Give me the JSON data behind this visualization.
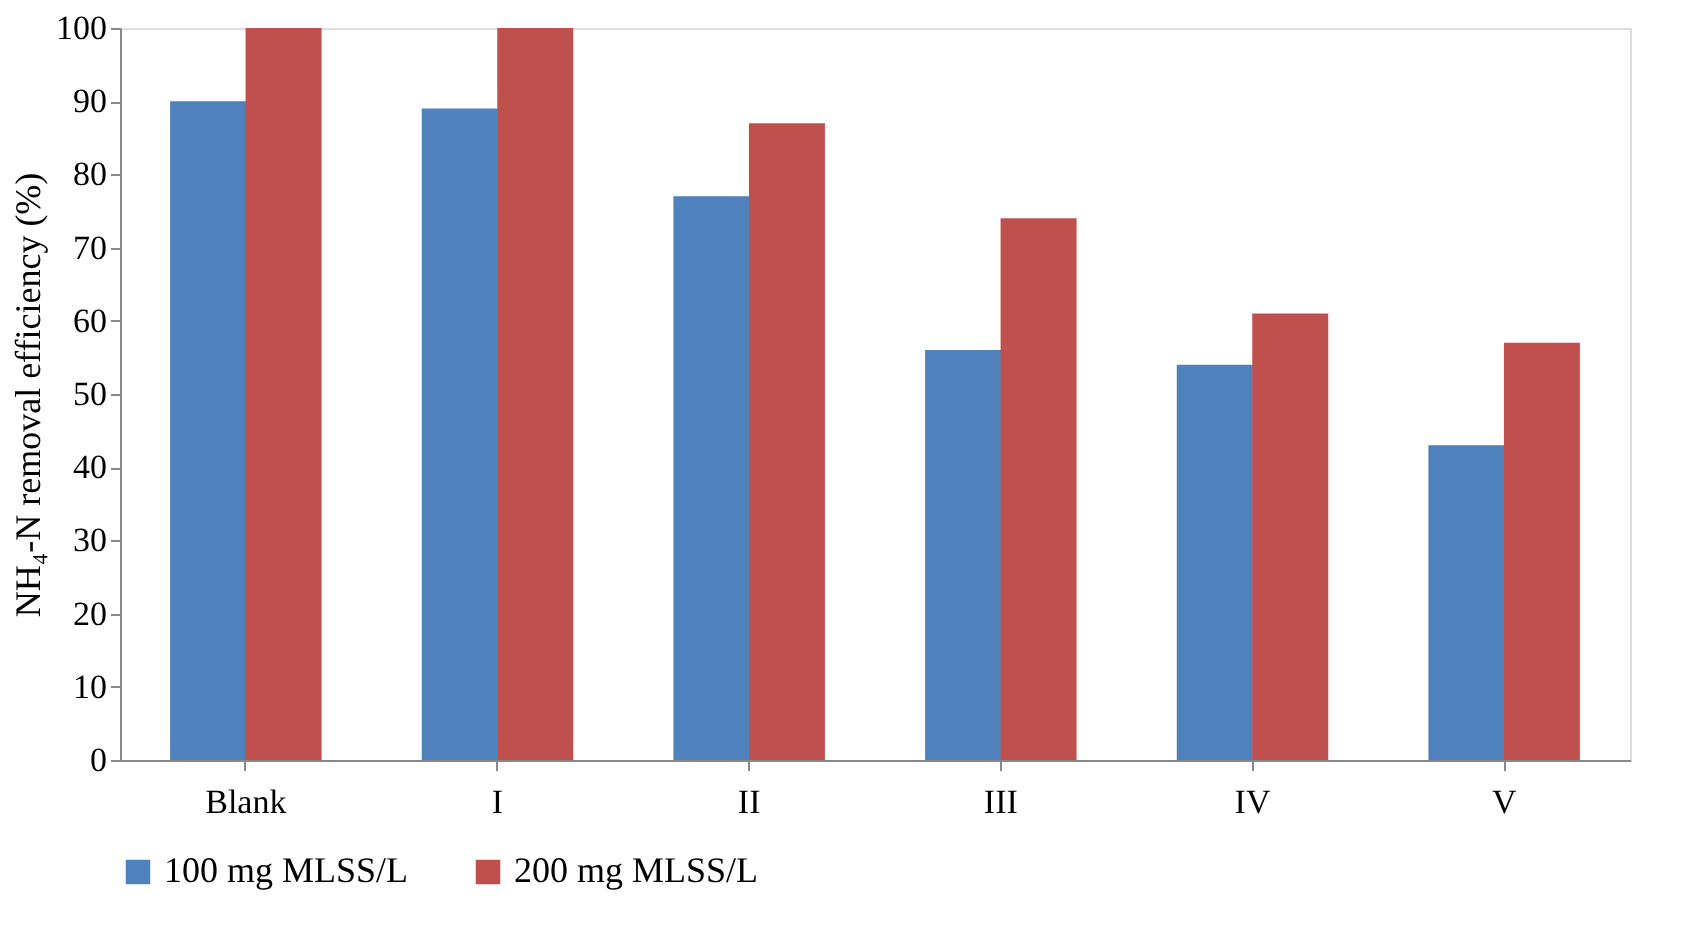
{
  "chart_data": {
    "type": "bar",
    "ylabel": "NH₄-N removal efficiency (%)",
    "categories": [
      "Blank",
      "I",
      "II",
      "III",
      "IV",
      "V"
    ],
    "series": [
      {
        "name": "100 mg MLSS/L",
        "color": "#4f81bd",
        "values": [
          90,
          89,
          77,
          56,
          54,
          43
        ]
      },
      {
        "name": "200 mg MLSS/L",
        "color": "#c0504d",
        "values": [
          100,
          100,
          87,
          74,
          61,
          57
        ]
      }
    ],
    "ylim": [
      0,
      100
    ],
    "yticks": [
      0,
      10,
      20,
      30,
      40,
      50,
      60,
      70,
      80,
      90,
      100
    ],
    "grid": false,
    "legend": "bottom"
  }
}
